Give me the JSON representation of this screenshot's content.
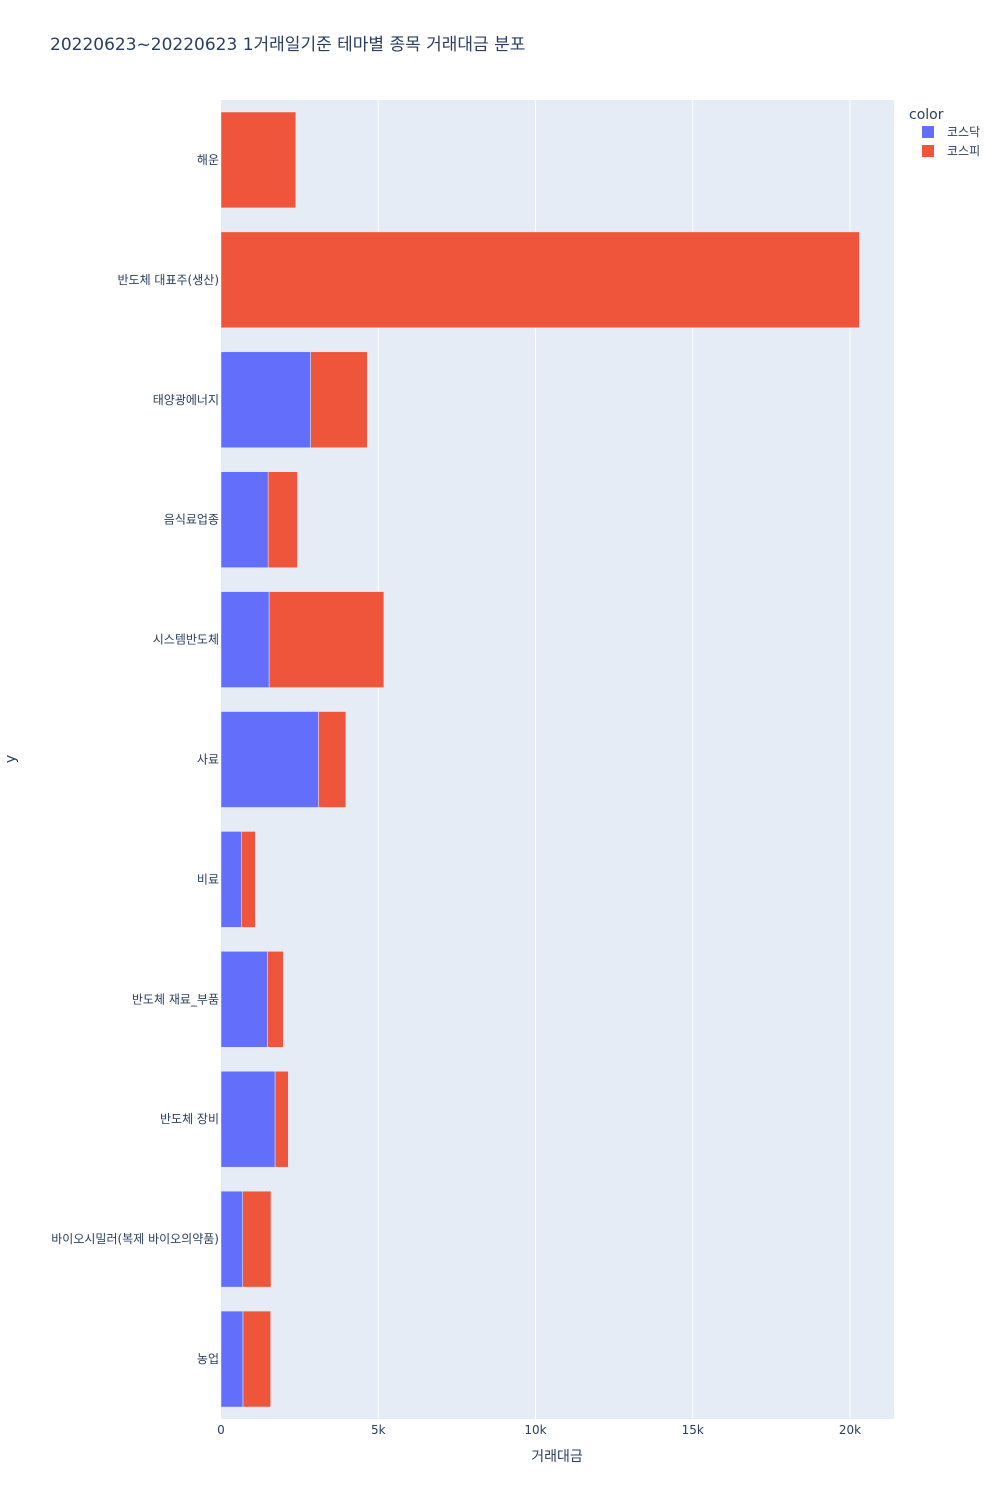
{
  "chart_data": {
    "type": "bar",
    "orientation": "horizontal",
    "barmode": "stack",
    "title": "20220623~20220623 1거래일기준 테마별 종목 거래대금 분포",
    "xlabel": "거래대금",
    "ylabel": "y",
    "legend_title": "color",
    "legend_position": "top-right",
    "grid": true,
    "xlim": [
      0,
      21400
    ],
    "x_ticks": [
      0,
      5000,
      10000,
      15000,
      20000
    ],
    "x_tick_labels": [
      "0",
      "5k",
      "10k",
      "15k",
      "20k"
    ],
    "categories": [
      "해운",
      "반도체 대표주(생산)",
      "태양광에너지",
      "음식료업종",
      "시스템반도체",
      "사료",
      "비료",
      "반도체 재료_부품",
      "반도체 장비",
      "바이오시밀러(복제 바이오의약품)",
      "농업"
    ],
    "series": [
      {
        "name": "코스닥",
        "color": "#636efa",
        "values": [
          0,
          0,
          2850,
          1500,
          1530,
          3100,
          650,
          1480,
          1720,
          690,
          700
        ]
      },
      {
        "name": "코스피",
        "color": "#ef553b",
        "values": [
          2380,
          20300,
          1800,
          930,
          3650,
          870,
          440,
          500,
          420,
          900,
          880
        ]
      }
    ]
  },
  "colors": {
    "plot_background": "#e5ecf6",
    "grid": "#ffffff",
    "text": "#2a3f5f"
  }
}
